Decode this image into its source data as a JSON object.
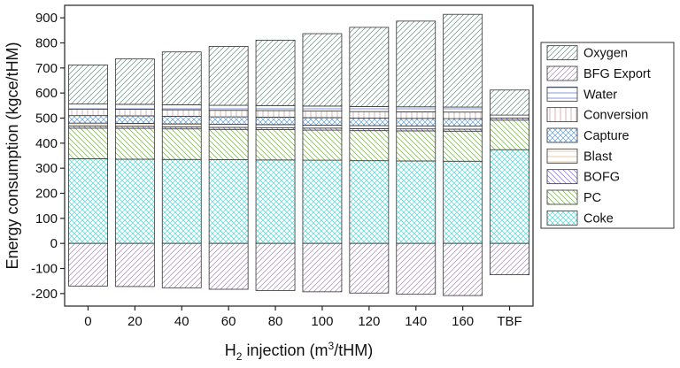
{
  "chart_data": {
    "type": "bar",
    "stacked": true,
    "xlabel_prefix": "H",
    "xlabel_sub": "2",
    "xlabel_mid": " injection (m",
    "xlabel_sup": "3",
    "xlabel_suffix": "/tHM)",
    "ylabel": "Energy consumption (kgce/tHM)",
    "ylim": [
      -250,
      950
    ],
    "yticks": [
      -200,
      -100,
      0,
      100,
      200,
      300,
      400,
      500,
      600,
      700,
      800,
      900
    ],
    "categories": [
      "0",
      "20",
      "40",
      "60",
      "80",
      "100",
      "120",
      "140",
      "160",
      "TBF"
    ],
    "legend_position": "right",
    "grid": false,
    "series": [
      {
        "name": "Coke",
        "color": "#38d6d6",
        "pattern": "cross",
        "values": [
          338,
          336,
          335,
          334,
          333,
          332,
          330,
          329,
          328,
          374
        ]
      },
      {
        "name": "PC",
        "color": "#5f9b2e",
        "pattern": "diag-back",
        "values": [
          122,
          123,
          122,
          121,
          121,
          120,
          120,
          120,
          120,
          118
        ]
      },
      {
        "name": "BOFG",
        "color": "#6a5acd",
        "pattern": "diag-back",
        "values": [
          8,
          8,
          8,
          8,
          8,
          8,
          8,
          8,
          8,
          8
        ]
      },
      {
        "name": "Blast",
        "color": "#d9a36a",
        "pattern": "horiz",
        "values": [
          12,
          12,
          12,
          12,
          12,
          12,
          12,
          12,
          12,
          12
        ]
      },
      {
        "name": "Capture",
        "color": "#4a90d9",
        "pattern": "cross",
        "values": [
          30,
          30,
          30,
          30,
          30,
          30,
          30,
          30,
          30,
          0
        ]
      },
      {
        "name": "Conversion",
        "color": "#c08080",
        "pattern": "vert",
        "values": [
          26,
          26,
          26,
          26,
          26,
          26,
          26,
          26,
          26,
          0
        ]
      },
      {
        "name": "Water",
        "color": "#3050c0",
        "pattern": "horiz",
        "values": [
          20,
          20,
          20,
          20,
          20,
          20,
          20,
          20,
          20,
          0
        ]
      },
      {
        "name": "BFG Export",
        "color": "#b060c0",
        "pattern": "diag",
        "values": [
          -170,
          -172,
          -177,
          -183,
          -188,
          -193,
          -198,
          -203,
          -208,
          -125
        ]
      },
      {
        "name": "Oxygen",
        "color": "#2a9070",
        "pattern": "diag",
        "values": [
          156,
          181,
          211,
          235,
          261,
          289,
          316,
          342,
          370,
          100
        ]
      }
    ],
    "legend_order": [
      "Oxygen",
      "BFG Export",
      "Water",
      "Conversion",
      "Capture",
      "Blast",
      "BOFG",
      "PC",
      "Coke"
    ]
  }
}
